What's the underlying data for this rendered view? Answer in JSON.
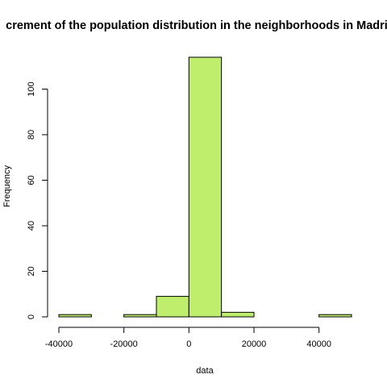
{
  "chart_data": {
    "type": "bar",
    "title": "crement of the population distribution in the neighborhoods in Madric",
    "xlabel": "data",
    "ylabel": "Frequency",
    "bins": [
      {
        "from": -40000,
        "to": -30000,
        "count": 1
      },
      {
        "from": -30000,
        "to": -20000,
        "count": 0
      },
      {
        "from": -20000,
        "to": -10000,
        "count": 1
      },
      {
        "from": -10000,
        "to": 0,
        "count": 9
      },
      {
        "from": 0,
        "to": 10000,
        "count": 114
      },
      {
        "from": 10000,
        "to": 20000,
        "count": 2
      },
      {
        "from": 20000,
        "to": 30000,
        "count": 0
      },
      {
        "from": 30000,
        "to": 40000,
        "count": 0
      },
      {
        "from": 40000,
        "to": 50000,
        "count": 1
      }
    ],
    "xlim": [
      -40000,
      50000
    ],
    "ylim": [
      0,
      114
    ],
    "x_ticks": [
      -40000,
      -20000,
      0,
      20000,
      40000
    ],
    "x_tick_labels": [
      "-40000",
      "-20000",
      "0",
      "20000",
      "40000"
    ],
    "y_ticks": [
      0,
      20,
      40,
      60,
      80,
      100
    ],
    "y_tick_labels": [
      "0",
      "20",
      "40",
      "60",
      "80",
      "100"
    ],
    "bar_color": "#bfee6c",
    "border_color": "#000000",
    "grid": false
  }
}
